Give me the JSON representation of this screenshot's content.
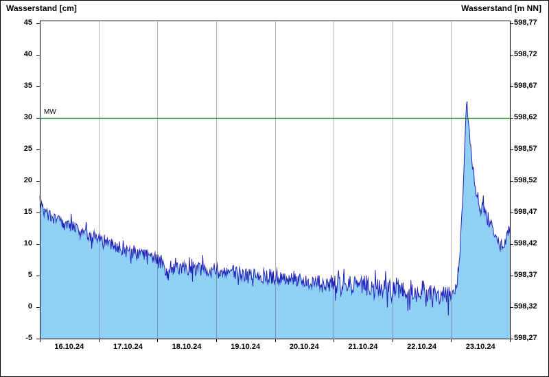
{
  "chart_data": {
    "type": "area",
    "title_left": "Wasserstand [cm]",
    "title_right": "Wasserstand [m NN]",
    "x_tick_labels": [
      "16.10.24",
      "17.10.24",
      "18.10.24",
      "19.10.24",
      "20.10.24",
      "21.10.24",
      "22.10.24",
      "23.10.24"
    ],
    "x_range_days": 8,
    "left_axis": {
      "label": "Wasserstand [cm]",
      "ticks": [
        45,
        40,
        35,
        30,
        25,
        20,
        15,
        10,
        5,
        0,
        -5
      ],
      "min": -5,
      "max": 45
    },
    "right_axis": {
      "label": "Wasserstand [m NN]",
      "ticks": [
        "598,77",
        "598,72",
        "598,67",
        "598,62",
        "598,57",
        "598,52",
        "598,47",
        "598,42",
        "598,37",
        "598,32",
        "598,27"
      ]
    },
    "reference_line": {
      "label": "MW",
      "value_cm": 30,
      "value_mnn": "598,62",
      "color": "#007a00"
    },
    "series": {
      "name": "Wasserstand",
      "baseline_points": [
        [
          0,
          17.2
        ],
        [
          0.02,
          16.3
        ],
        [
          0.06,
          15.4
        ],
        [
          0.12,
          14.8
        ],
        [
          0.2,
          14.3
        ],
        [
          0.3,
          13.9
        ],
        [
          0.4,
          13.4
        ],
        [
          0.5,
          13.0
        ],
        [
          0.6,
          12.6
        ],
        [
          0.7,
          12.2
        ],
        [
          0.8,
          11.6
        ],
        [
          0.9,
          11.1
        ],
        [
          1.0,
          10.6
        ],
        [
          1.1,
          10.2
        ],
        [
          1.2,
          9.9
        ],
        [
          1.3,
          9.4
        ],
        [
          1.4,
          9.0
        ],
        [
          1.5,
          8.7
        ],
        [
          1.6,
          8.5
        ],
        [
          1.7,
          8.4
        ],
        [
          1.8,
          8.3
        ],
        [
          1.9,
          8.2
        ],
        [
          2.0,
          8.0
        ],
        [
          2.05,
          7.2
        ],
        [
          2.15,
          5.4
        ],
        [
          2.25,
          5.9
        ],
        [
          2.4,
          6.2
        ],
        [
          2.55,
          6.1
        ],
        [
          2.7,
          6.0
        ],
        [
          2.85,
          6.0
        ],
        [
          3.0,
          6.0
        ],
        [
          3.15,
          5.8
        ],
        [
          3.3,
          5.5
        ],
        [
          3.45,
          5.2
        ],
        [
          3.6,
          4.9
        ],
        [
          3.75,
          4.8
        ],
        [
          3.9,
          4.7
        ],
        [
          4.0,
          4.7
        ],
        [
          4.2,
          4.4
        ],
        [
          4.4,
          4.2
        ],
        [
          4.6,
          4.0
        ],
        [
          4.8,
          3.9
        ],
        [
          5.0,
          3.8
        ],
        [
          5.2,
          3.6
        ],
        [
          5.4,
          3.4
        ],
        [
          5.6,
          3.2
        ],
        [
          5.8,
          3.0
        ],
        [
          6.0,
          2.8
        ],
        [
          6.2,
          2.5
        ],
        [
          6.4,
          2.2
        ],
        [
          6.6,
          2.0
        ],
        [
          6.8,
          1.8
        ],
        [
          7.0,
          1.7
        ],
        [
          7.05,
          2.2
        ],
        [
          7.1,
          4.0
        ],
        [
          7.15,
          8.5
        ],
        [
          7.2,
          18.0
        ],
        [
          7.24,
          28.0
        ],
        [
          7.27,
          32.5
        ],
        [
          7.3,
          29.5
        ],
        [
          7.34,
          24.5
        ],
        [
          7.38,
          21.0
        ],
        [
          7.44,
          17.5
        ],
        [
          7.5,
          15.3
        ],
        [
          7.55,
          16.2
        ],
        [
          7.6,
          14.0
        ],
        [
          7.65,
          12.8
        ],
        [
          7.7,
          13.2
        ],
        [
          7.75,
          11.5
        ],
        [
          7.8,
          10.3
        ],
        [
          7.85,
          9.8
        ],
        [
          7.9,
          10.0
        ],
        [
          7.95,
          11.2
        ],
        [
          8.0,
          13.2
        ]
      ],
      "noise_regions": [
        [
          0,
          2,
          0.9
        ],
        [
          2,
          5,
          1.1
        ],
        [
          5,
          7.05,
          1.5
        ],
        [
          7.05,
          7.45,
          0.8
        ],
        [
          7.45,
          8.05,
          0.9
        ]
      ],
      "samples": 780,
      "seed": 7,
      "fill_color": "#8fd0f4",
      "line_color": "#2020b8"
    },
    "colors": {
      "grid": "#9a9a9a",
      "axis": "#000000",
      "background": "#ffffff"
    }
  }
}
